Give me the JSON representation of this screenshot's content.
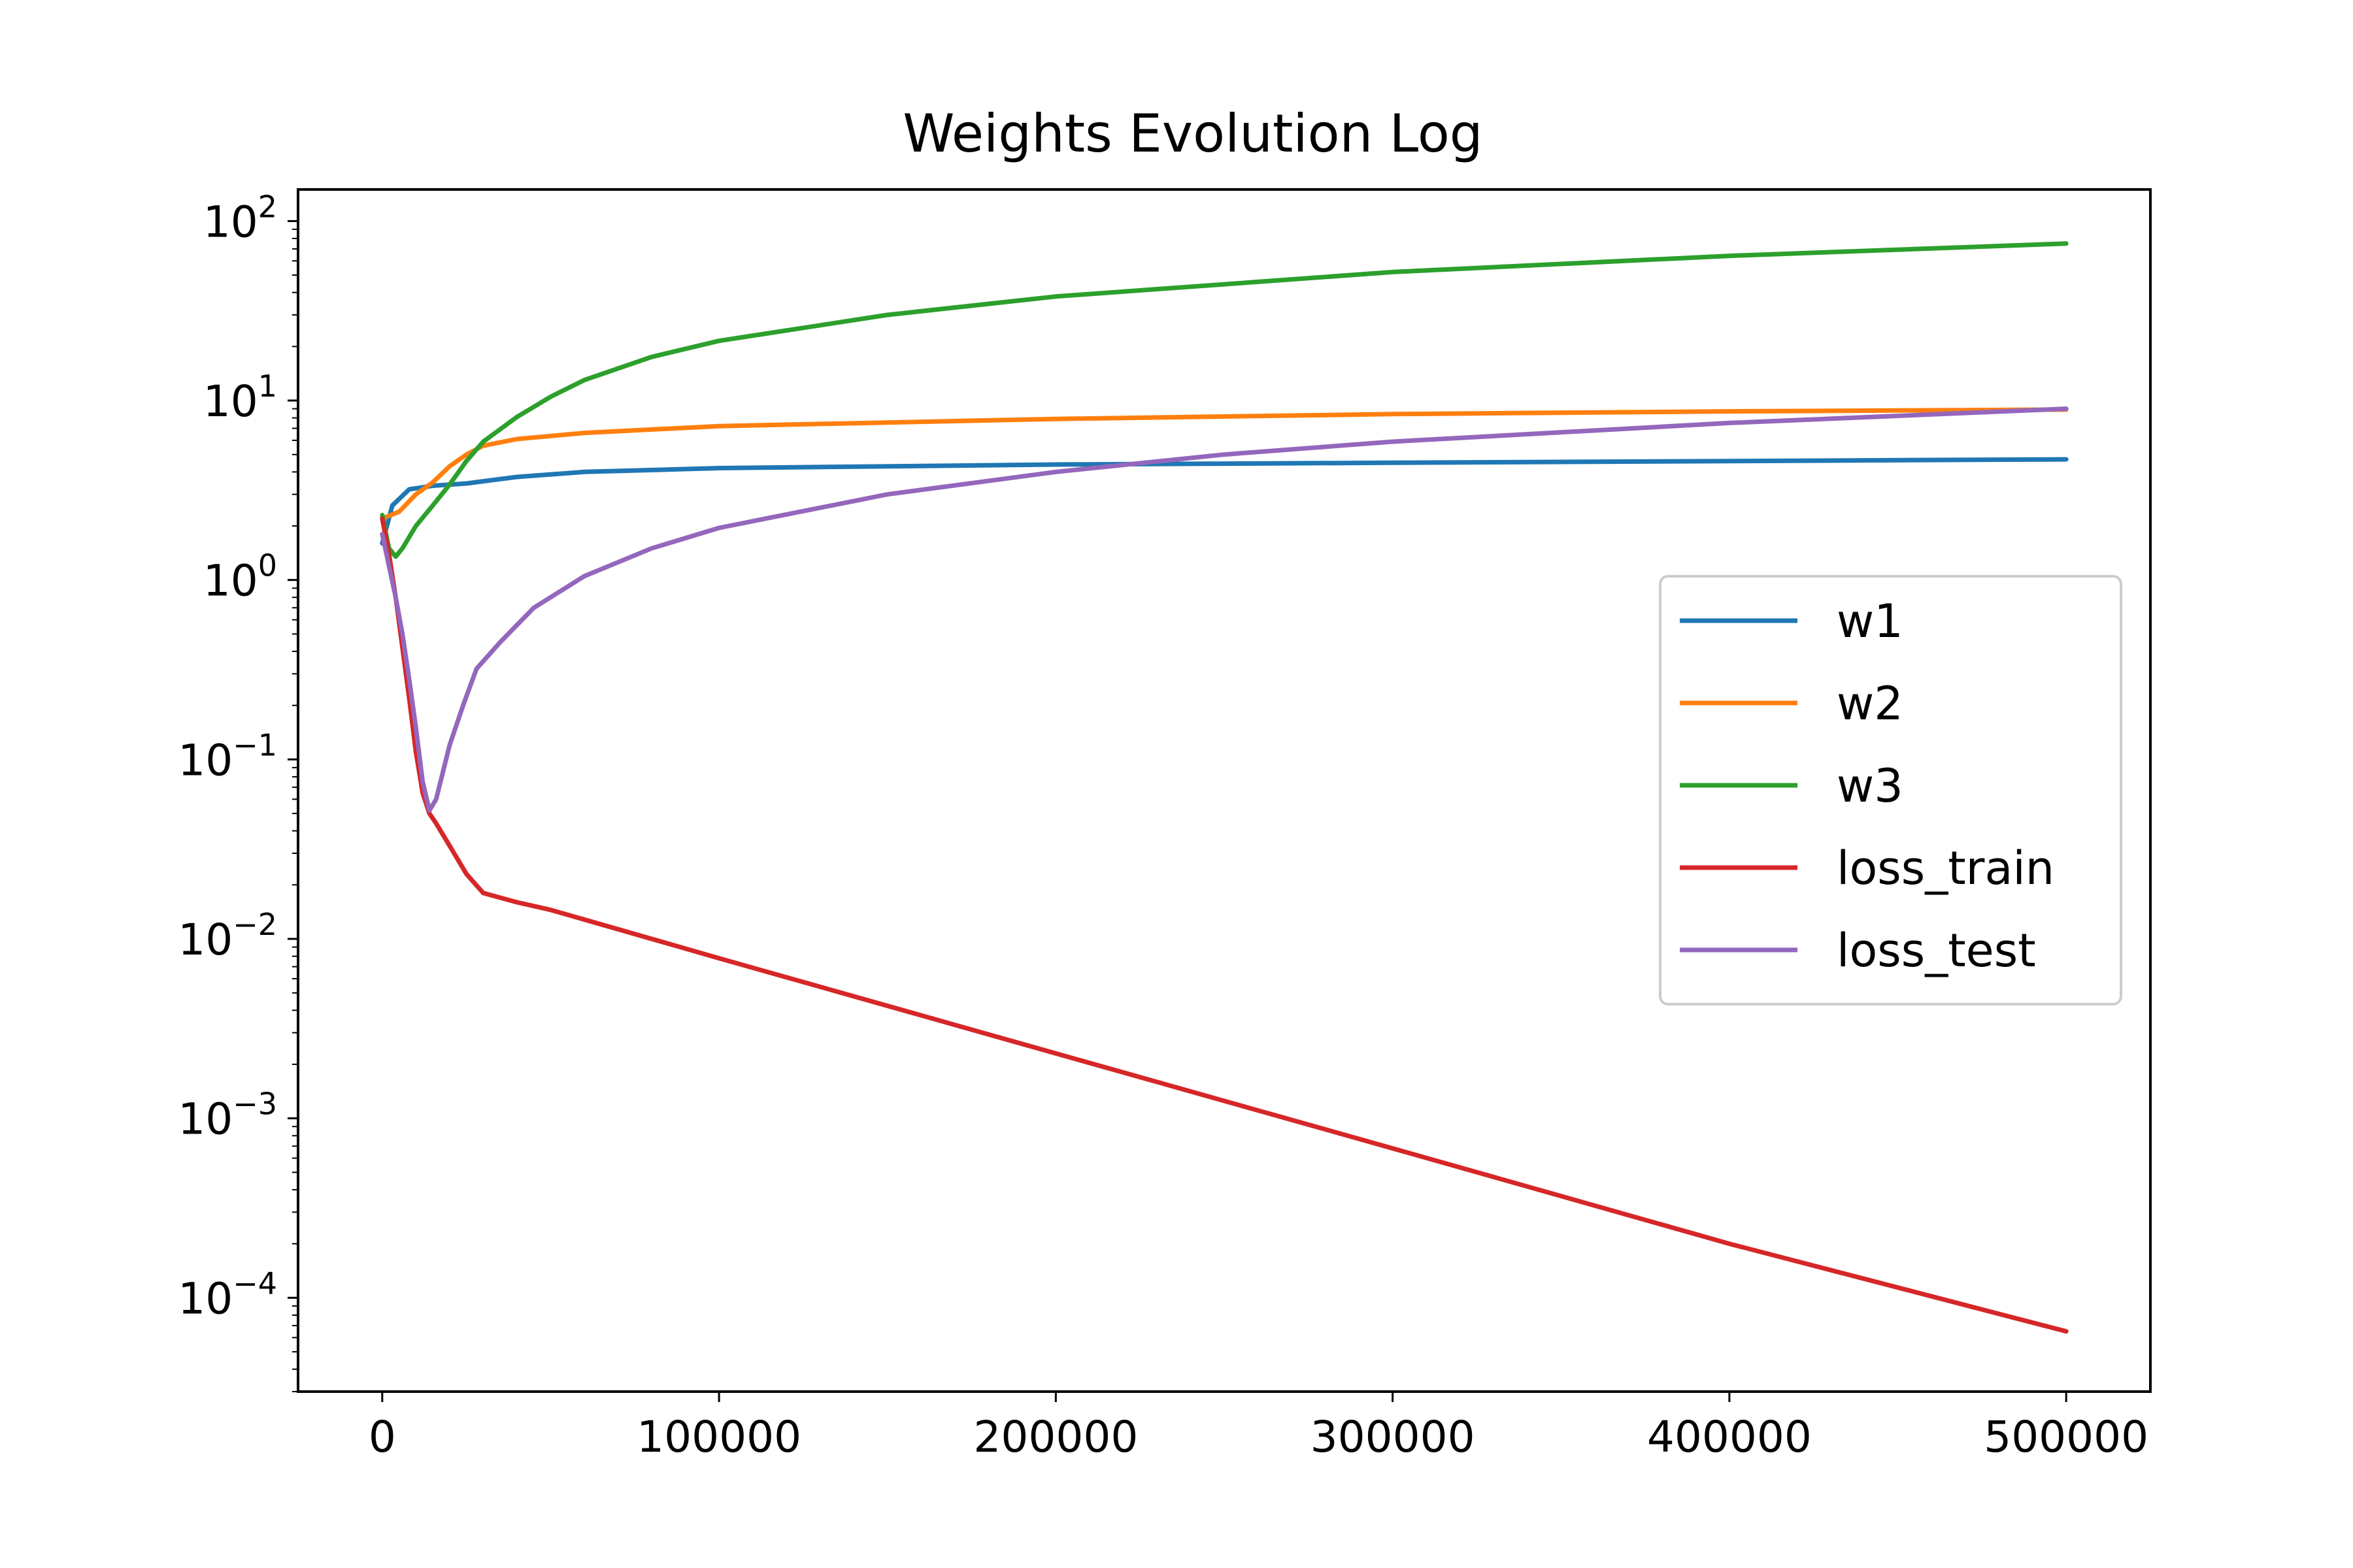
{
  "chart_data": {
    "type": "line",
    "title": "Weights Evolution Log",
    "xlabel": "",
    "ylabel": "",
    "yscale": "log",
    "xlim": [
      -25000,
      525000
    ],
    "ylim": [
      3e-05,
      150
    ],
    "grid": false,
    "legend_position": "center-right",
    "x_ticks": [
      {
        "value": 0,
        "label": "0"
      },
      {
        "value": 100000,
        "label": "100000"
      },
      {
        "value": 200000,
        "label": "200000"
      },
      {
        "value": 300000,
        "label": "300000"
      },
      {
        "value": 400000,
        "label": "400000"
      },
      {
        "value": 500000,
        "label": "500000"
      }
    ],
    "y_ticks": [
      {
        "value": 100,
        "base": "10",
        "exponent": "2"
      },
      {
        "value": 10,
        "base": "10",
        "exponent": "1"
      },
      {
        "value": 1,
        "base": "10",
        "exponent": "0"
      },
      {
        "value": 0.1,
        "base": "10",
        "exponent": "−1"
      },
      {
        "value": 0.01,
        "base": "10",
        "exponent": "−2"
      },
      {
        "value": 0.001,
        "base": "10",
        "exponent": "−3"
      },
      {
        "value": 0.0001,
        "base": "10",
        "exponent": "−4"
      }
    ],
    "series": [
      {
        "name": "w1",
        "color": "#1f77b4",
        "x": [
          0,
          3000,
          8000,
          15000,
          20000,
          25000,
          30000,
          40000,
          60000,
          100000,
          200000,
          300000,
          400000,
          500000
        ],
        "y": [
          1.6,
          2.6,
          3.2,
          3.35,
          3.4,
          3.45,
          3.55,
          3.75,
          4.0,
          4.2,
          4.4,
          4.5,
          4.6,
          4.7
        ]
      },
      {
        "name": "w2",
        "color": "#ff7f0e",
        "x": [
          0,
          5000,
          10000,
          15000,
          20000,
          25000,
          30000,
          40000,
          60000,
          100000,
          200000,
          300000,
          400000,
          500000
        ],
        "y": [
          2.2,
          2.4,
          3.0,
          3.5,
          4.3,
          5.0,
          5.6,
          6.1,
          6.6,
          7.2,
          7.9,
          8.4,
          8.7,
          8.9
        ]
      },
      {
        "name": "w3",
        "color": "#2ca02c",
        "x": [
          0,
          2000,
          4000,
          6000,
          10000,
          15000,
          20000,
          25000,
          30000,
          40000,
          50000,
          60000,
          80000,
          100000,
          150000,
          200000,
          300000,
          400000,
          500000
        ],
        "y": [
          2.3,
          1.5,
          1.35,
          1.5,
          2.0,
          2.6,
          3.4,
          4.6,
          5.9,
          8.1,
          10.5,
          13,
          17.5,
          21.5,
          30,
          38,
          52,
          64,
          75
        ]
      },
      {
        "name": "loss_train",
        "color": "#d62728",
        "x": [
          0,
          2000,
          4000,
          6000,
          8000,
          10000,
          12000,
          14000,
          16000,
          20000,
          25000,
          30000,
          40000,
          50000,
          100000,
          200000,
          300000,
          400000,
          500000
        ],
        "y": [
          2.2,
          1.4,
          0.8,
          0.42,
          0.22,
          0.11,
          0.065,
          0.05,
          0.044,
          0.033,
          0.023,
          0.018,
          0.016,
          0.0145,
          0.0078,
          0.0023,
          0.00068,
          0.0002,
          6.5e-05
        ]
      },
      {
        "name": "loss_test",
        "color": "#9467bd",
        "x": [
          0,
          2000,
          4000,
          6000,
          8000,
          10000,
          12000,
          14000,
          16000,
          18000,
          20000,
          24000,
          28000,
          35000,
          45000,
          60000,
          80000,
          100000,
          150000,
          200000,
          250000,
          300000,
          400000,
          500000
        ],
        "y": [
          1.8,
          1.2,
          0.8,
          0.5,
          0.28,
          0.15,
          0.075,
          0.052,
          0.06,
          0.085,
          0.12,
          0.2,
          0.32,
          0.45,
          0.7,
          1.05,
          1.5,
          1.95,
          3.0,
          4.0,
          5.0,
          5.9,
          7.5,
          9.0
        ]
      }
    ]
  }
}
